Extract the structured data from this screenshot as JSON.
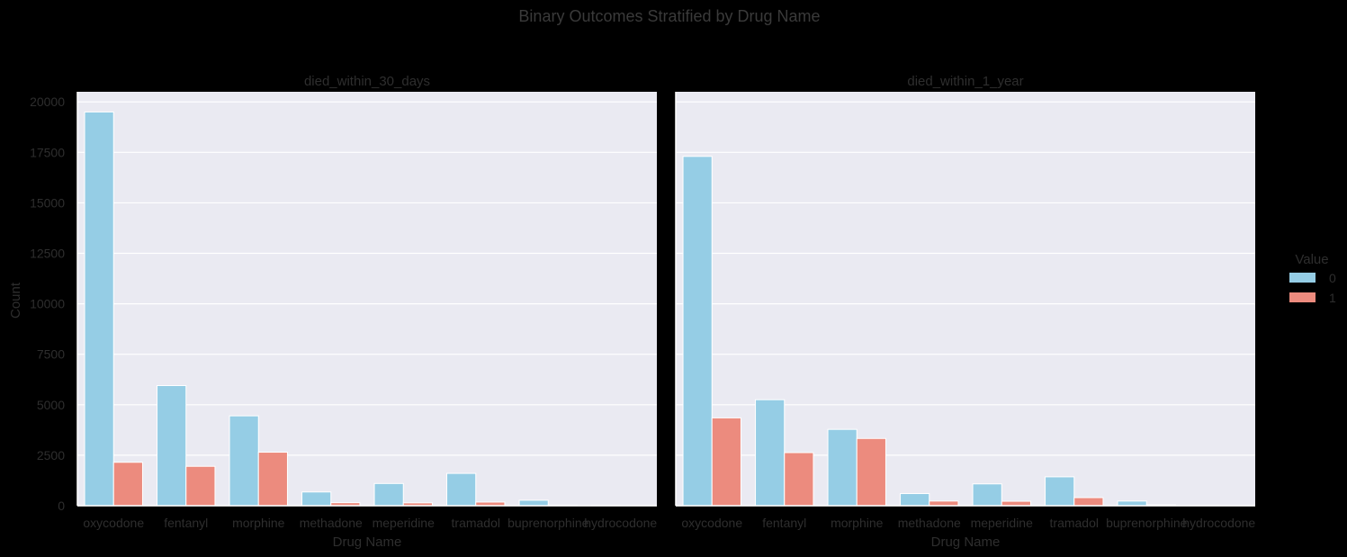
{
  "chart_data": {
    "type": "bar",
    "title": "Binary Outcomes Stratified by Drug Name",
    "ylabel": "Count",
    "xlabel": "Drug Name",
    "ylim": [
      0,
      20500
    ],
    "yticks": [
      0,
      2500,
      5000,
      7500,
      10000,
      12500,
      15000,
      17500,
      20000
    ],
    "grid": true,
    "legend": {
      "title": "Value",
      "position": "right",
      "entries": [
        {
          "label": "0",
          "color": "#95cde5"
        },
        {
          "label": "1",
          "color": "#ec8b7e"
        }
      ]
    },
    "categories": [
      "oxycodone",
      "fentanyl",
      "morphine",
      "methadone",
      "meperidine",
      "tramadol",
      "buprenorphine",
      "hydrocodone"
    ],
    "panels": [
      {
        "title": "died_within_30_days",
        "series": [
          {
            "name": "0",
            "values": [
              19500,
              5950,
              4450,
              680,
              1100,
              1600,
              270,
              15
            ]
          },
          {
            "name": "1",
            "values": [
              2150,
              1950,
              2650,
              150,
              140,
              180,
              25,
              5
            ]
          }
        ]
      },
      {
        "title": "died_within_1_year",
        "series": [
          {
            "name": "0",
            "values": [
              17300,
              5250,
              3780,
              600,
              1080,
              1430,
              230,
              15
            ]
          },
          {
            "name": "1",
            "values": [
              4350,
              2630,
              3330,
              230,
              220,
              400,
              40,
              5
            ]
          }
        ]
      }
    ]
  },
  "colors": {
    "panel_bg": "#eaeaf2",
    "grid": "#ffffff",
    "figure_bg": "#000000"
  }
}
